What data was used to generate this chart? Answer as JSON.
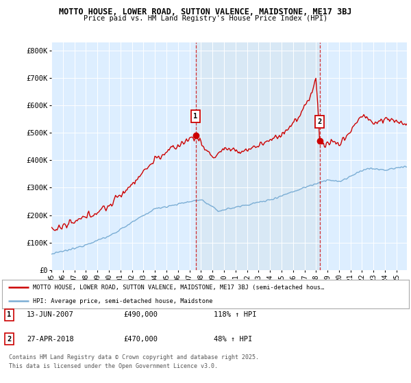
{
  "title": "MOTTO HOUSE, LOWER ROAD, SUTTON VALENCE, MAIDSTONE, ME17 3BJ",
  "subtitle": "Price paid vs. HM Land Registry's House Price Index (HPI)",
  "ylim": [
    0,
    830000
  ],
  "yticks": [
    0,
    100000,
    200000,
    300000,
    400000,
    500000,
    600000,
    700000,
    800000
  ],
  "ytick_labels": [
    "£0",
    "£100K",
    "£200K",
    "£300K",
    "£400K",
    "£500K",
    "£600K",
    "£700K",
    "£800K"
  ],
  "house_color": "#cc0000",
  "hpi_color": "#7aadd4",
  "bg_color": "#ddeeff",
  "highlight_color": "#d8e8f5",
  "sale1_x": 2007.54,
  "sale1_y": 490000,
  "sale1_label": "1",
  "sale2_x": 2018.32,
  "sale2_y": 470000,
  "sale2_label": "2",
  "legend_house": "MOTTO HOUSE, LOWER ROAD, SUTTON VALENCE, MAIDSTONE, ME17 3BJ (semi-detached hous…",
  "legend_hpi": "HPI: Average price, semi-detached house, Maidstone",
  "annotation1_date": "13-JUN-2007",
  "annotation1_price": "£490,000",
  "annotation1_hpi": "118% ↑ HPI",
  "annotation2_date": "27-APR-2018",
  "annotation2_price": "£470,000",
  "annotation2_hpi": "48% ↑ HPI",
  "footer": "Contains HM Land Registry data © Crown copyright and database right 2025.\nThis data is licensed under the Open Government Licence v3.0.",
  "xmin": 1995.0,
  "xmax": 2025.9
}
